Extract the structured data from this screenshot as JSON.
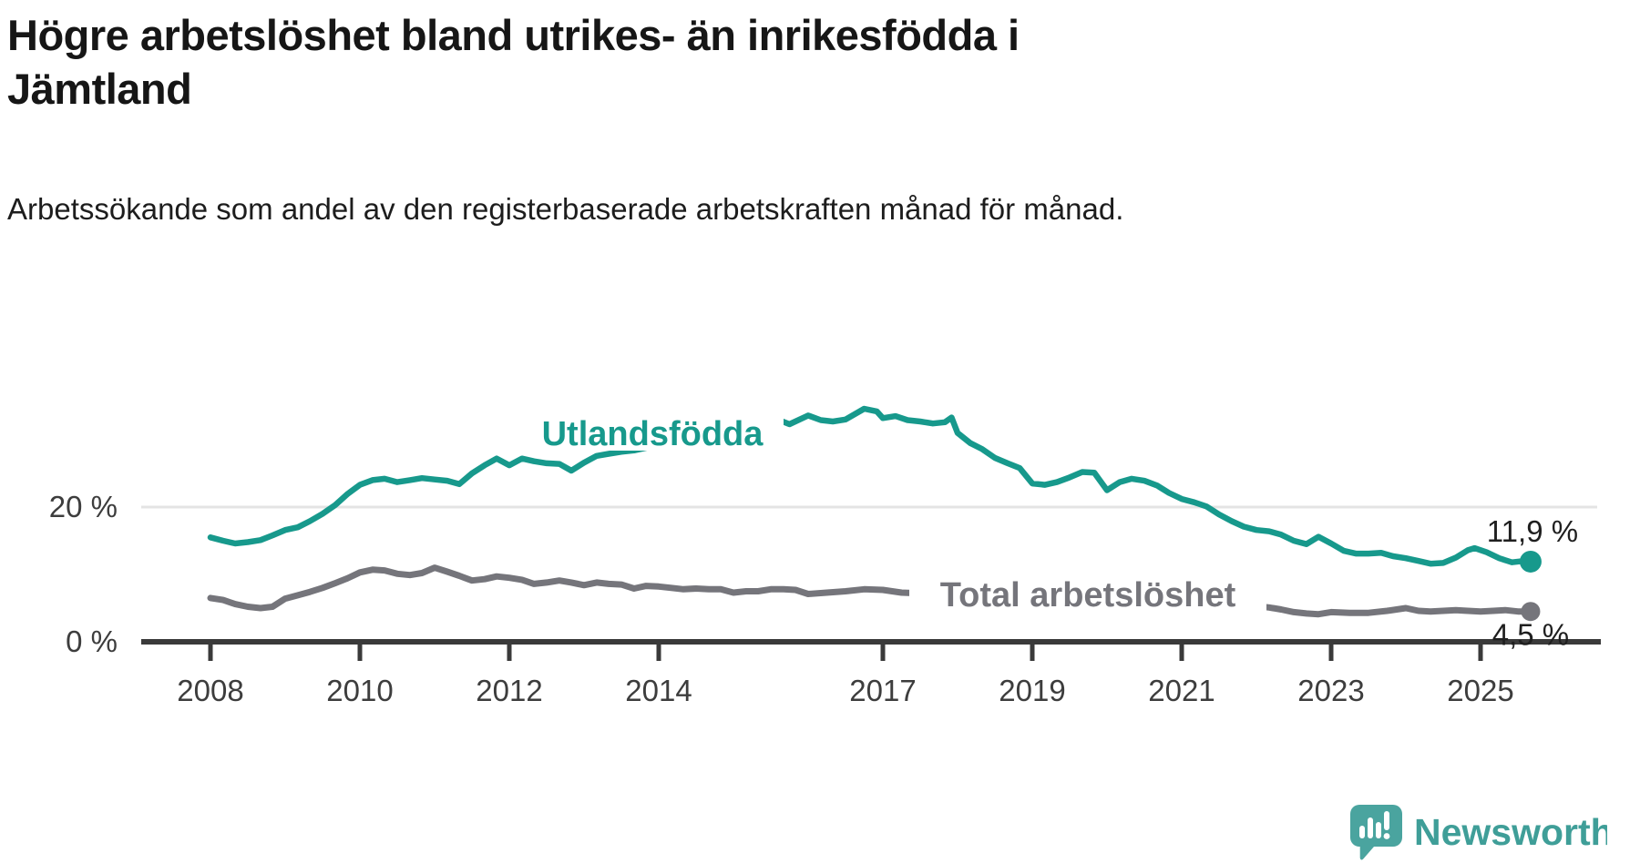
{
  "header": {
    "title": "Högre arbetslöshet bland utrikes- än inrikesfödda i Jämtland",
    "subtitle": "Arbetssökande som andel av den registerbaserade arbetskraften månad för månad."
  },
  "chart_data": {
    "type": "line",
    "unit": "%",
    "x_tick_labels": [
      "2008",
      "2010",
      "2012",
      "2014",
      "2017",
      "2019",
      "2021",
      "2023",
      "2025"
    ],
    "x_tick_years": [
      2008,
      2010,
      2012,
      2014,
      2017,
      2019,
      2021,
      2023,
      2025
    ],
    "y_ticks": [
      {
        "value": 0,
        "label": "0 %"
      },
      {
        "value": 20,
        "label": "20 %"
      }
    ],
    "xlim": [
      2008,
      2025.9
    ],
    "ylim": [
      0,
      40
    ],
    "grid": "single horizontal gridline at 20 %",
    "legend_position": "inline labels next to lines",
    "axis_color": "#3a3a3a",
    "grid_color": "#e4e4e4",
    "series": [
      {
        "name": "Utlandsfödda",
        "color": "#17998c",
        "end_label": "11,9 %",
        "end_value": 11.9,
        "points": [
          [
            2008.0,
            15.5
          ],
          [
            2008.17,
            15.0
          ],
          [
            2008.33,
            14.6
          ],
          [
            2008.5,
            14.8
          ],
          [
            2008.67,
            15.1
          ],
          [
            2008.83,
            15.8
          ],
          [
            2009.0,
            16.6
          ],
          [
            2009.17,
            17.0
          ],
          [
            2009.33,
            17.9
          ],
          [
            2009.5,
            19.0
          ],
          [
            2009.67,
            20.3
          ],
          [
            2009.83,
            21.9
          ],
          [
            2010.0,
            23.3
          ],
          [
            2010.17,
            24.0
          ],
          [
            2010.33,
            24.2
          ],
          [
            2010.5,
            23.7
          ],
          [
            2010.67,
            24.0
          ],
          [
            2010.83,
            24.3
          ],
          [
            2011.0,
            24.1
          ],
          [
            2011.17,
            23.9
          ],
          [
            2011.33,
            23.4
          ],
          [
            2011.5,
            25.0
          ],
          [
            2011.67,
            26.2
          ],
          [
            2011.83,
            27.2
          ],
          [
            2012.0,
            26.2
          ],
          [
            2012.17,
            27.2
          ],
          [
            2012.33,
            26.8
          ],
          [
            2012.5,
            26.5
          ],
          [
            2012.67,
            26.4
          ],
          [
            2012.83,
            25.4
          ],
          [
            2013.0,
            26.6
          ],
          [
            2013.17,
            27.6
          ],
          [
            2013.33,
            27.9
          ],
          [
            2013.5,
            28.2
          ],
          [
            2013.67,
            28.4
          ],
          [
            2013.83,
            28.8
          ],
          [
            2014.0,
            29.1
          ],
          [
            2014.25,
            29.6
          ],
          [
            2014.5,
            30.1
          ],
          [
            2014.75,
            30.7
          ],
          [
            2015.0,
            31.4
          ],
          [
            2015.25,
            32.2
          ],
          [
            2015.5,
            33.4
          ],
          [
            2015.75,
            32.3
          ],
          [
            2016.0,
            33.6
          ],
          [
            2016.17,
            32.9
          ],
          [
            2016.33,
            32.7
          ],
          [
            2016.5,
            33.0
          ],
          [
            2016.75,
            34.6
          ],
          [
            2016.92,
            34.2
          ],
          [
            2017.0,
            33.2
          ],
          [
            2017.17,
            33.5
          ],
          [
            2017.33,
            32.9
          ],
          [
            2017.5,
            32.7
          ],
          [
            2017.67,
            32.4
          ],
          [
            2017.83,
            32.6
          ],
          [
            2017.92,
            33.3
          ],
          [
            2018.0,
            31.0
          ],
          [
            2018.17,
            29.5
          ],
          [
            2018.33,
            28.6
          ],
          [
            2018.5,
            27.3
          ],
          [
            2018.67,
            26.5
          ],
          [
            2018.83,
            25.8
          ],
          [
            2019.0,
            23.5
          ],
          [
            2019.17,
            23.3
          ],
          [
            2019.33,
            23.7
          ],
          [
            2019.5,
            24.4
          ],
          [
            2019.67,
            25.2
          ],
          [
            2019.83,
            25.1
          ],
          [
            2020.0,
            22.5
          ],
          [
            2020.17,
            23.7
          ],
          [
            2020.33,
            24.2
          ],
          [
            2020.5,
            23.9
          ],
          [
            2020.67,
            23.2
          ],
          [
            2020.83,
            22.1
          ],
          [
            2021.0,
            21.2
          ],
          [
            2021.17,
            20.7
          ],
          [
            2021.33,
            20.1
          ],
          [
            2021.5,
            18.9
          ],
          [
            2021.67,
            17.9
          ],
          [
            2021.83,
            17.1
          ],
          [
            2022.0,
            16.6
          ],
          [
            2022.17,
            16.4
          ],
          [
            2022.33,
            15.9
          ],
          [
            2022.5,
            15.0
          ],
          [
            2022.67,
            14.5
          ],
          [
            2022.83,
            15.6
          ],
          [
            2023.0,
            14.6
          ],
          [
            2023.17,
            13.5
          ],
          [
            2023.33,
            13.1
          ],
          [
            2023.5,
            13.1
          ],
          [
            2023.67,
            13.2
          ],
          [
            2023.83,
            12.7
          ],
          [
            2024.0,
            12.4
          ],
          [
            2024.17,
            12.0
          ],
          [
            2024.33,
            11.6
          ],
          [
            2024.5,
            11.7
          ],
          [
            2024.67,
            12.5
          ],
          [
            2024.83,
            13.6
          ],
          [
            2024.92,
            13.9
          ],
          [
            2025.08,
            13.3
          ],
          [
            2025.25,
            12.4
          ],
          [
            2025.42,
            11.8
          ],
          [
            2025.58,
            12.0
          ],
          [
            2025.67,
            11.9
          ]
        ]
      },
      {
        "name": "Total arbetslöshet",
        "color": "#75757b",
        "end_label": "4,5 %",
        "end_value": 4.5,
        "points": [
          [
            2008.0,
            6.5
          ],
          [
            2008.17,
            6.2
          ],
          [
            2008.33,
            5.6
          ],
          [
            2008.5,
            5.2
          ],
          [
            2008.67,
            5.0
          ],
          [
            2008.83,
            5.2
          ],
          [
            2009.0,
            6.4
          ],
          [
            2009.17,
            6.9
          ],
          [
            2009.33,
            7.4
          ],
          [
            2009.5,
            8.0
          ],
          [
            2009.67,
            8.7
          ],
          [
            2009.83,
            9.4
          ],
          [
            2010.0,
            10.3
          ],
          [
            2010.17,
            10.7
          ],
          [
            2010.33,
            10.6
          ],
          [
            2010.5,
            10.1
          ],
          [
            2010.67,
            9.9
          ],
          [
            2010.83,
            10.2
          ],
          [
            2011.0,
            11.0
          ],
          [
            2011.17,
            10.4
          ],
          [
            2011.33,
            9.8
          ],
          [
            2011.5,
            9.1
          ],
          [
            2011.67,
            9.3
          ],
          [
            2011.83,
            9.7
          ],
          [
            2012.0,
            9.5
          ],
          [
            2012.17,
            9.2
          ],
          [
            2012.33,
            8.6
          ],
          [
            2012.5,
            8.8
          ],
          [
            2012.67,
            9.1
          ],
          [
            2012.83,
            8.8
          ],
          [
            2013.0,
            8.4
          ],
          [
            2013.17,
            8.8
          ],
          [
            2013.33,
            8.6
          ],
          [
            2013.5,
            8.5
          ],
          [
            2013.67,
            7.9
          ],
          [
            2013.83,
            8.3
          ],
          [
            2014.0,
            8.2
          ],
          [
            2014.17,
            8.0
          ],
          [
            2014.33,
            7.8
          ],
          [
            2014.5,
            7.9
          ],
          [
            2014.67,
            7.8
          ],
          [
            2014.83,
            7.8
          ],
          [
            2015.0,
            7.3
          ],
          [
            2015.17,
            7.5
          ],
          [
            2015.33,
            7.5
          ],
          [
            2015.5,
            7.8
          ],
          [
            2015.67,
            7.8
          ],
          [
            2015.83,
            7.7
          ],
          [
            2016.0,
            7.1
          ],
          [
            2016.25,
            7.3
          ],
          [
            2016.5,
            7.5
          ],
          [
            2016.75,
            7.8
          ],
          [
            2017.0,
            7.7
          ],
          [
            2017.25,
            7.3
          ],
          [
            2017.5,
            7.2
          ],
          [
            2017.75,
            7.3
          ],
          [
            2018.0,
            7.1
          ],
          [
            2018.5,
            6.7
          ],
          [
            2019.0,
            6.3
          ],
          [
            2019.5,
            6.0
          ],
          [
            2019.83,
            5.9
          ],
          [
            2020.08,
            6.8
          ],
          [
            2020.33,
            7.3
          ],
          [
            2020.58,
            7.1
          ],
          [
            2021.0,
            6.6
          ],
          [
            2021.5,
            5.9
          ],
          [
            2021.83,
            5.5
          ],
          [
            2022.0,
            5.3
          ],
          [
            2022.17,
            5.1
          ],
          [
            2022.33,
            4.8
          ],
          [
            2022.5,
            4.4
          ],
          [
            2022.67,
            4.2
          ],
          [
            2022.83,
            4.1
          ],
          [
            2023.0,
            4.4
          ],
          [
            2023.25,
            4.3
          ],
          [
            2023.5,
            4.3
          ],
          [
            2023.75,
            4.6
          ],
          [
            2024.0,
            5.0
          ],
          [
            2024.17,
            4.6
          ],
          [
            2024.33,
            4.5
          ],
          [
            2024.5,
            4.6
          ],
          [
            2024.67,
            4.7
          ],
          [
            2024.83,
            4.6
          ],
          [
            2025.0,
            4.5
          ],
          [
            2025.17,
            4.6
          ],
          [
            2025.33,
            4.7
          ],
          [
            2025.5,
            4.5
          ],
          [
            2025.67,
            4.5
          ]
        ]
      }
    ]
  },
  "branding": {
    "logo_text": "Newsworthy",
    "logo_icon": "speech-bubble-bar-chart-icon",
    "brand_color": "#4aa49f"
  }
}
